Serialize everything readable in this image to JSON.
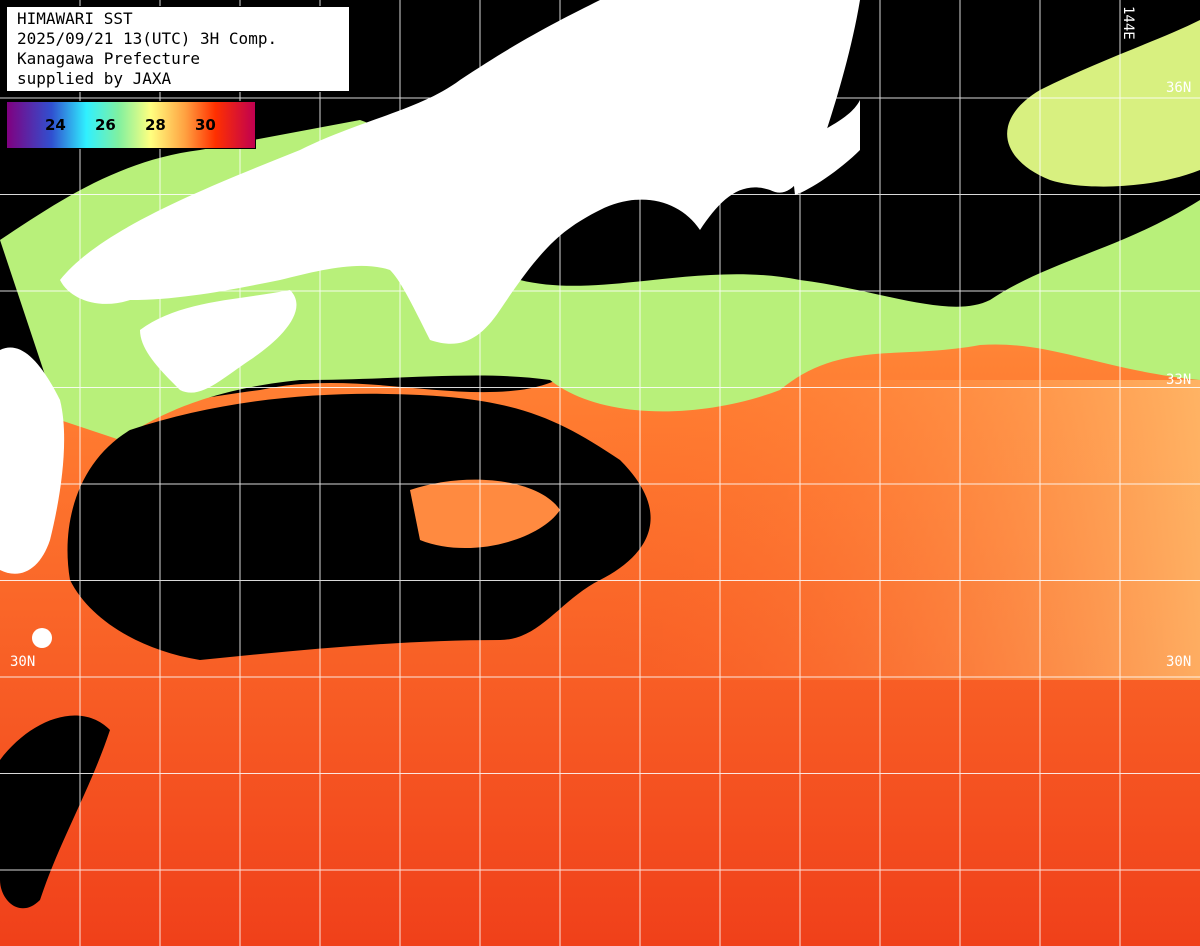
{
  "title_box": {
    "line1": "HIMAWARI SST",
    "line2": "2025/09/21 13(UTC) 3H Comp.",
    "line3": "Kanagawa Prefecture",
    "line4": "supplied by JAXA"
  },
  "colorbar": {
    "ticks": [
      "24",
      "26",
      "28",
      "30"
    ],
    "unit_colors": [
      "#800080",
      "#3050d0",
      "#30f0ff",
      "#80f0a0",
      "#ffff80",
      "#ffa040",
      "#ff3000",
      "#c00050"
    ]
  },
  "grid_labels": {
    "lon_top_right": "144E",
    "lat_36": "36N",
    "lat_33": "33N",
    "lat_30_left": "30N",
    "lat_30_right": "30N"
  },
  "colors": {
    "land": "#ffffff",
    "cloud_nodata": "#000000",
    "warm_sea": "#ff5a1e",
    "cool_sea": "#b8f07a",
    "grid": "#ffffff"
  }
}
